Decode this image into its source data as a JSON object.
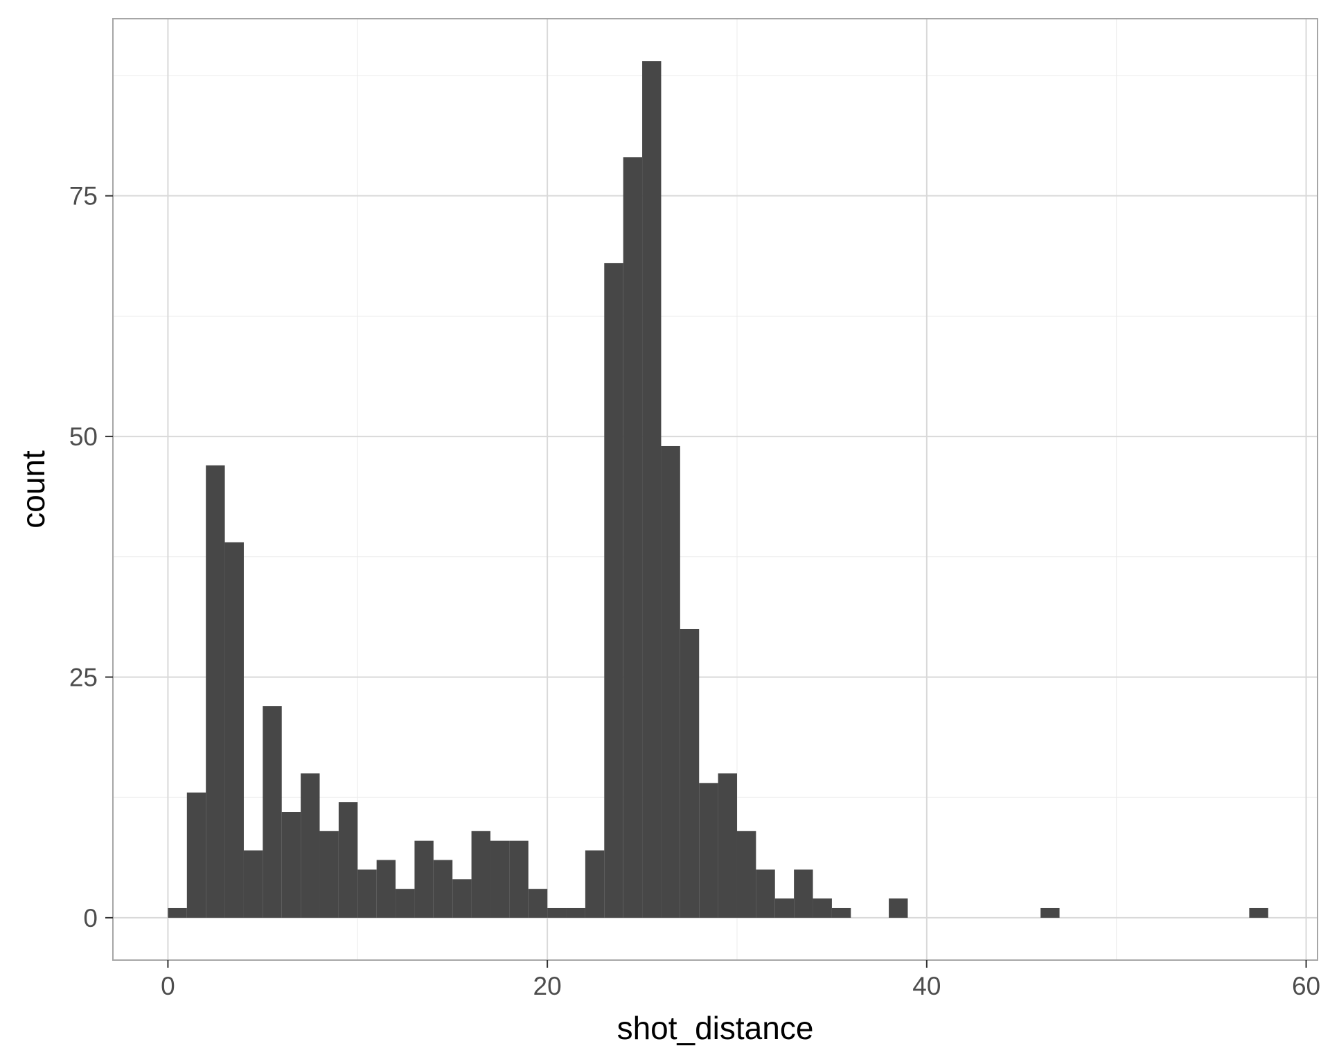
{
  "chart_data": {
    "type": "bar",
    "xlabel": "shot_distance",
    "ylabel": "count",
    "xlim": [
      -2.9,
      60.6
    ],
    "ylim": [
      -4.4,
      93.4
    ],
    "x_ticks": [
      0,
      20,
      40,
      60
    ],
    "y_ticks": [
      0,
      25,
      50,
      75
    ],
    "x_minor_ticks": [
      10,
      30,
      50
    ],
    "y_minor_ticks": [
      12.5,
      37.5,
      62.5,
      87.5
    ],
    "grid": true,
    "bin_width": 1,
    "bins": [
      {
        "x0": 0,
        "x1": 1,
        "count": 1
      },
      {
        "x0": 1,
        "x1": 2,
        "count": 13
      },
      {
        "x0": 2,
        "x1": 3,
        "count": 47
      },
      {
        "x0": 3,
        "x1": 4,
        "count": 39
      },
      {
        "x0": 4,
        "x1": 5,
        "count": 7
      },
      {
        "x0": 5,
        "x1": 6,
        "count": 22
      },
      {
        "x0": 6,
        "x1": 7,
        "count": 11
      },
      {
        "x0": 7,
        "x1": 8,
        "count": 15
      },
      {
        "x0": 8,
        "x1": 9,
        "count": 9
      },
      {
        "x0": 9,
        "x1": 10,
        "count": 12
      },
      {
        "x0": 10,
        "x1": 11,
        "count": 5
      },
      {
        "x0": 11,
        "x1": 12,
        "count": 6
      },
      {
        "x0": 12,
        "x1": 13,
        "count": 3
      },
      {
        "x0": 13,
        "x1": 14,
        "count": 8
      },
      {
        "x0": 14,
        "x1": 15,
        "count": 6
      },
      {
        "x0": 15,
        "x1": 16,
        "count": 4
      },
      {
        "x0": 16,
        "x1": 17,
        "count": 9
      },
      {
        "x0": 17,
        "x1": 18,
        "count": 8
      },
      {
        "x0": 18,
        "x1": 19,
        "count": 8
      },
      {
        "x0": 19,
        "x1": 20,
        "count": 3
      },
      {
        "x0": 20,
        "x1": 21,
        "count": 1
      },
      {
        "x0": 21,
        "x1": 22,
        "count": 1
      },
      {
        "x0": 22,
        "x1": 23,
        "count": 7
      },
      {
        "x0": 23,
        "x1": 24,
        "count": 68
      },
      {
        "x0": 24,
        "x1": 25,
        "count": 79
      },
      {
        "x0": 25,
        "x1": 26,
        "count": 89
      },
      {
        "x0": 26,
        "x1": 27,
        "count": 49
      },
      {
        "x0": 27,
        "x1": 28,
        "count": 30
      },
      {
        "x0": 28,
        "x1": 29,
        "count": 14
      },
      {
        "x0": 29,
        "x1": 30,
        "count": 15
      },
      {
        "x0": 30,
        "x1": 31,
        "count": 9
      },
      {
        "x0": 31,
        "x1": 32,
        "count": 5
      },
      {
        "x0": 32,
        "x1": 33,
        "count": 2
      },
      {
        "x0": 33,
        "x1": 34,
        "count": 5
      },
      {
        "x0": 34,
        "x1": 35,
        "count": 2
      },
      {
        "x0": 35,
        "x1": 36,
        "count": 1
      },
      {
        "x0": 38,
        "x1": 39,
        "count": 2
      },
      {
        "x0": 46,
        "x1": 47,
        "count": 1
      },
      {
        "x0": 57,
        "x1": 58,
        "count": 1
      }
    ]
  },
  "colors": {
    "bar": "#474747",
    "grid_major": "#d9d9d9",
    "grid_minor": "#ebebeb",
    "panel_border": "#a6a6a6",
    "tick_label": "#4d4d4d",
    "axis_title": "#000000"
  }
}
